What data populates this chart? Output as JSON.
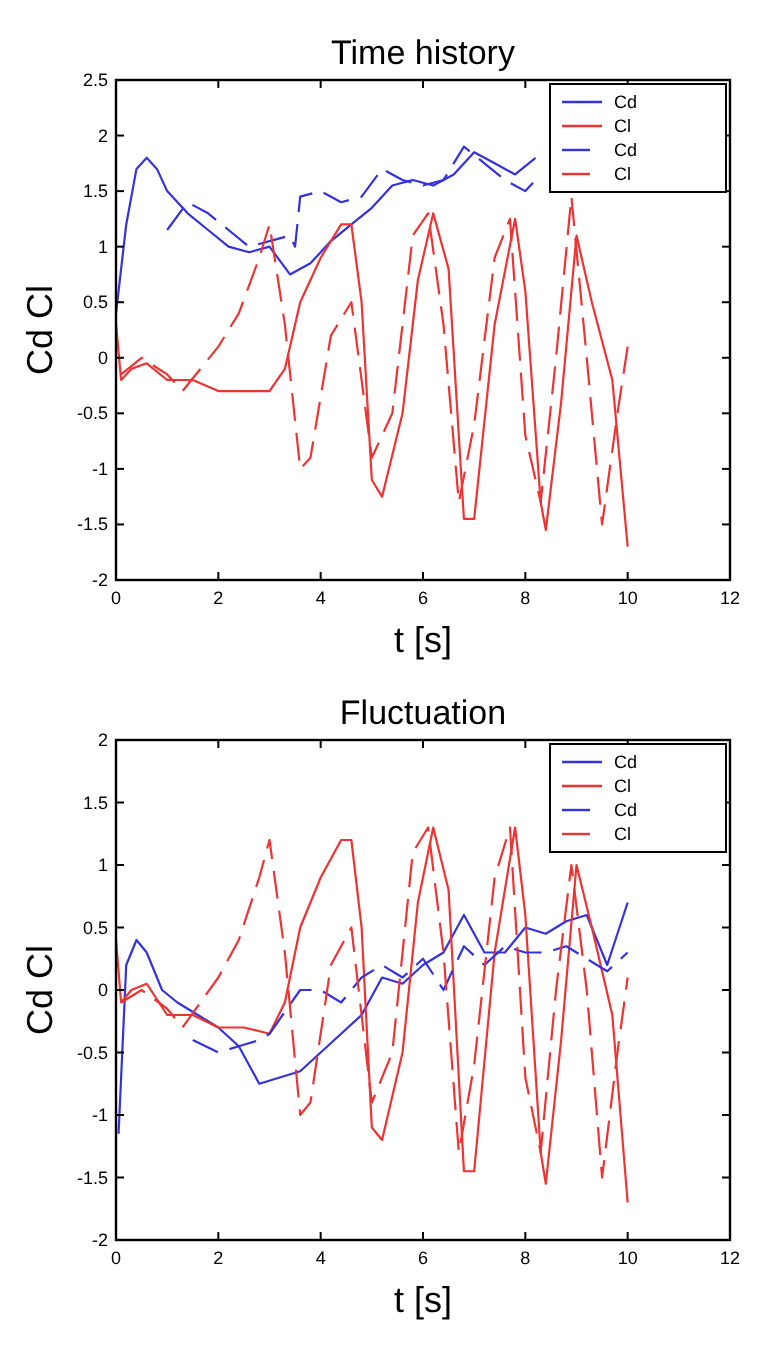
{
  "chart_data": [
    {
      "type": "line",
      "title": "Time history",
      "xlabel": "t [s]",
      "ylabel": "Cd Cl",
      "xlim": [
        0,
        12
      ],
      "xticks": [
        0,
        2,
        4,
        6,
        8,
        10,
        12
      ],
      "ylim": [
        -2,
        2.5
      ],
      "yticks": [
        -2,
        -1.5,
        -1,
        -0.5,
        0,
        0.5,
        1,
        1.5,
        2,
        2.5
      ],
      "grid": false,
      "legend": "top right",
      "marker": "none",
      "series": [
        {
          "name": "Cd",
          "color": "#3333dd",
          "line_style": "solid",
          "x": [
            0,
            0.2,
            0.4,
            0.6,
            0.8,
            1.0,
            1.4,
            1.8,
            2.2,
            2.6,
            3.0,
            3.4,
            3.8,
            4.2,
            4.6,
            5.0,
            5.4,
            5.8,
            6.2,
            6.6,
            7.0,
            7.4,
            7.8,
            8.2
          ],
          "values": [
            0.4,
            1.2,
            1.7,
            1.8,
            1.7,
            1.5,
            1.3,
            1.15,
            1.0,
            0.95,
            1.0,
            0.75,
            0.85,
            1.05,
            1.2,
            1.35,
            1.55,
            1.6,
            1.55,
            1.65,
            1.85,
            1.75,
            1.65,
            1.8
          ]
        },
        {
          "name": "Cl",
          "color": "#ee3333",
          "line_style": "solid",
          "x": [
            0,
            0.1,
            0.3,
            0.6,
            1.0,
            1.5,
            2.0,
            2.5,
            3.0,
            3.3,
            3.6,
            4.0,
            4.4,
            4.6,
            4.8,
            5.0,
            5.2,
            5.6,
            5.9,
            6.2,
            6.5,
            6.8,
            7.0,
            7.4,
            7.8,
            8.0,
            8.3,
            8.4,
            8.7,
            9.0,
            9.3,
            9.7,
            10.0
          ],
          "values": [
            0.3,
            -0.2,
            -0.1,
            -0.05,
            -0.2,
            -0.2,
            -0.3,
            -0.3,
            -0.3,
            -0.1,
            0.5,
            0.9,
            1.2,
            1.2,
            0.5,
            -1.1,
            -1.25,
            -0.5,
            0.7,
            1.3,
            0.8,
            -1.45,
            -1.45,
            0.3,
            1.25,
            0.6,
            -1.3,
            -1.55,
            -0.4,
            1.1,
            0.5,
            -0.2,
            -1.7
          ]
        },
        {
          "name": "Cd",
          "color": "#3333dd",
          "line_style": "dashed",
          "x": [
            1.0,
            1.4,
            1.8,
            2.2,
            2.6,
            3.0,
            3.4,
            3.5,
            3.6,
            4.0,
            4.4,
            4.8,
            5.2,
            5.6,
            6.0,
            6.4,
            6.8,
            7.2,
            7.6,
            8.0,
            8.2
          ],
          "values": [
            1.15,
            1.4,
            1.3,
            1.15,
            1.0,
            1.05,
            1.1,
            1.0,
            1.45,
            1.5,
            1.4,
            1.45,
            1.7,
            1.6,
            1.55,
            1.6,
            1.9,
            1.75,
            1.6,
            1.5,
            1.6
          ]
        },
        {
          "name": "Cl",
          "color": "#ee3333",
          "line_style": "dashed",
          "x": [
            0.1,
            0.5,
            1.0,
            1.3,
            2.0,
            2.4,
            2.8,
            3.0,
            3.3,
            3.6,
            3.8,
            4.2,
            4.6,
            5.0,
            5.4,
            5.8,
            6.1,
            6.4,
            6.7,
            7.0,
            7.4,
            7.7,
            8.0,
            8.3,
            8.6,
            8.9,
            9.2,
            9.5,
            9.8,
            10.0
          ],
          "values": [
            -0.15,
            0.0,
            -0.15,
            -0.3,
            0.1,
            0.4,
            0.9,
            1.2,
            0.3,
            -1.0,
            -0.9,
            0.2,
            0.5,
            -0.9,
            -0.5,
            1.1,
            1.3,
            0.3,
            -1.3,
            -0.6,
            0.9,
            1.25,
            -0.7,
            -1.3,
            0.0,
            1.45,
            0.0,
            -1.5,
            -0.5,
            0.1
          ]
        }
      ]
    },
    {
      "type": "line",
      "title": "Fluctuation",
      "xlabel": "t [s]",
      "ylabel": "Cd Cl",
      "xlim": [
        0,
        12
      ],
      "xticks": [
        0,
        2,
        4,
        6,
        8,
        10,
        12
      ],
      "ylim": [
        -2,
        2
      ],
      "yticks": [
        -2,
        -1.5,
        -1,
        -0.5,
        0,
        0.5,
        1,
        1.5,
        2
      ],
      "grid": false,
      "legend": "top right",
      "marker": "none",
      "series": [
        {
          "name": "Cd",
          "color": "#3333dd",
          "line_style": "solid",
          "x": [
            0.05,
            0.2,
            0.4,
            0.6,
            0.9,
            1.2,
            1.6,
            2.0,
            2.4,
            2.8,
            3.2,
            3.6,
            4.0,
            4.4,
            4.8,
            5.2,
            5.6,
            6.0,
            6.4,
            6.8,
            7.2,
            7.6,
            8.0,
            8.4,
            8.8,
            9.2,
            9.6,
            10.0
          ],
          "values": [
            -1.15,
            0.2,
            0.4,
            0.3,
            0.0,
            -0.1,
            -0.2,
            -0.3,
            -0.45,
            -0.75,
            -0.7,
            -0.65,
            -0.5,
            -0.35,
            -0.2,
            0.1,
            0.05,
            0.2,
            0.3,
            0.6,
            0.3,
            0.3,
            0.5,
            0.45,
            0.55,
            0.6,
            0.2,
            0.7
          ]
        },
        {
          "name": "Cl",
          "color": "#ee3333",
          "line_style": "solid",
          "x": [
            0,
            0.1,
            0.3,
            0.6,
            1.0,
            1.5,
            2.0,
            2.5,
            3.0,
            3.3,
            3.6,
            4.0,
            4.4,
            4.6,
            4.8,
            5.0,
            5.2,
            5.6,
            5.9,
            6.2,
            6.5,
            6.8,
            7.0,
            7.4,
            7.8,
            8.0,
            8.3,
            8.4,
            8.7,
            9.0,
            9.3,
            9.7,
            10.0
          ],
          "values": [
            0.4,
            -0.1,
            0.0,
            0.05,
            -0.2,
            -0.2,
            -0.3,
            -0.3,
            -0.35,
            -0.1,
            0.5,
            0.9,
            1.2,
            1.2,
            0.5,
            -1.1,
            -1.2,
            -0.5,
            0.7,
            1.3,
            0.8,
            -1.45,
            -1.45,
            0.3,
            1.3,
            0.6,
            -1.3,
            -1.55,
            -0.4,
            1.0,
            0.5,
            -0.2,
            -1.7
          ]
        },
        {
          "name": "Cd",
          "color": "#3333dd",
          "line_style": "dashed",
          "x": [
            1.5,
            2.0,
            2.4,
            2.8,
            3.0,
            3.6,
            4.0,
            4.4,
            4.8,
            5.2,
            5.6,
            6.0,
            6.4,
            6.8,
            7.2,
            7.6,
            8.0,
            8.4,
            8.8,
            9.2,
            9.6,
            10.0
          ],
          "values": [
            -0.4,
            -0.5,
            -0.45,
            -0.4,
            -0.35,
            0.0,
            0.0,
            -0.1,
            0.1,
            0.2,
            0.1,
            0.25,
            0.0,
            0.35,
            0.2,
            0.35,
            0.3,
            0.3,
            0.35,
            0.25,
            0.15,
            0.3
          ]
        },
        {
          "name": "Cl",
          "color": "#ee3333",
          "line_style": "dashed",
          "x": [
            0.1,
            0.5,
            1.0,
            1.3,
            2.0,
            2.4,
            2.8,
            3.0,
            3.3,
            3.6,
            3.8,
            4.2,
            4.6,
            5.0,
            5.4,
            5.8,
            6.1,
            6.4,
            6.7,
            7.0,
            7.4,
            7.7,
            8.0,
            8.3,
            8.6,
            8.9,
            9.2,
            9.5,
            9.8,
            10.0
          ],
          "values": [
            -0.1,
            0.0,
            -0.15,
            -0.3,
            0.1,
            0.4,
            0.9,
            1.2,
            0.3,
            -1.0,
            -0.9,
            0.2,
            0.5,
            -0.9,
            -0.5,
            1.1,
            1.3,
            0.3,
            -1.3,
            -0.6,
            0.9,
            1.3,
            -0.7,
            -1.3,
            0.0,
            1.0,
            0.0,
            -1.5,
            -0.5,
            0.1
          ]
        }
      ]
    }
  ]
}
